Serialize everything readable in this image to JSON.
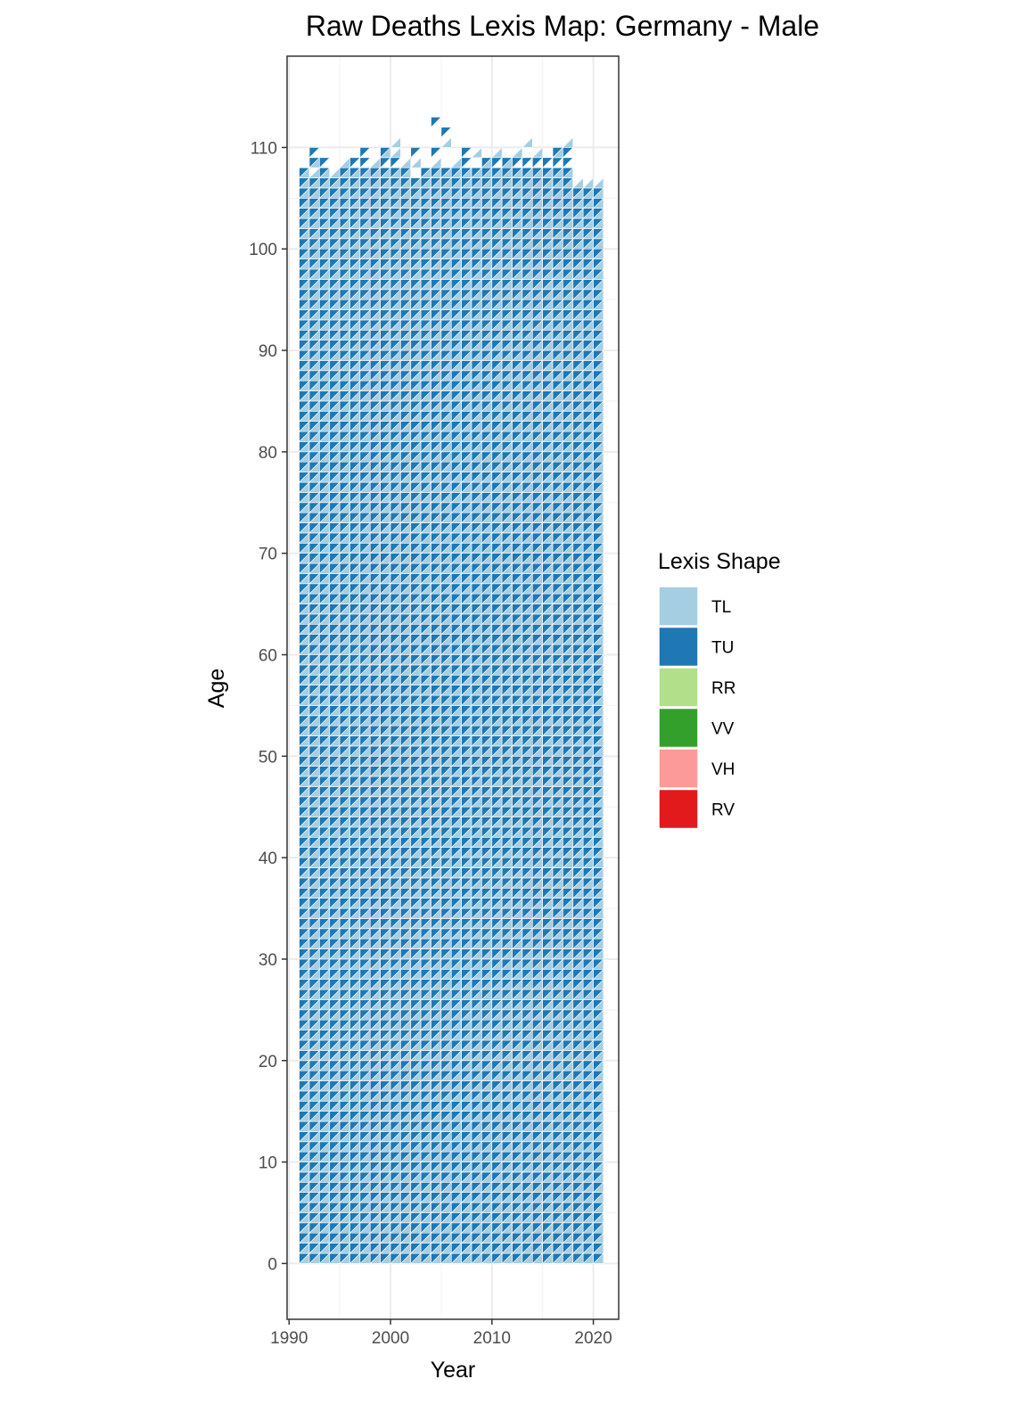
{
  "chart_data": {
    "type": "heatmap",
    "title": "Raw Deaths Lexis Map: Germany - Male",
    "xlabel": "Year",
    "ylabel": "Age",
    "xlim": [
      1989.8,
      2022.5
    ],
    "ylim": [
      -5.5,
      119
    ],
    "xticks": [
      1990,
      2000,
      2010,
      2020
    ],
    "yticks": [
      0,
      10,
      20,
      30,
      40,
      50,
      60,
      70,
      80,
      90,
      100,
      110
    ],
    "grid": true,
    "legend_position": "right",
    "legend": {
      "title": "Lexis Shape",
      "entries": [
        {
          "label": "TL",
          "color": "#a6cee3"
        },
        {
          "label": "TU",
          "color": "#1f78b4"
        },
        {
          "label": "RR",
          "color": "#b2df8a"
        },
        {
          "label": "VV",
          "color": "#33a02c"
        },
        {
          "label": "VH",
          "color": "#fb9a99"
        },
        {
          "label": "RV",
          "color": "#e31a1c"
        }
      ]
    },
    "series": [
      {
        "name": "TL",
        "color": "#a6cee3",
        "shape": "lower triangle of each year-age cell"
      },
      {
        "name": "TU",
        "color": "#1f78b4",
        "shape": "upper triangle of each year-age cell"
      }
    ],
    "years": [
      1991,
      1992,
      1993,
      1994,
      1995,
      1996,
      1997,
      1998,
      1999,
      2000,
      2001,
      2002,
      2003,
      2004,
      2005,
      2006,
      2007,
      2008,
      2009,
      2010,
      2011,
      2012,
      2013,
      2014,
      2015,
      2016,
      2017,
      2018,
      2019,
      2020
    ],
    "max_age_full_coverage": [
      106,
      106,
      106,
      106,
      107,
      107,
      107,
      107,
      107,
      107,
      107,
      106,
      107,
      107,
      107,
      107,
      107,
      107,
      107,
      107,
      107,
      107,
      107,
      107,
      107,
      107,
      107,
      105,
      105,
      105
    ],
    "upper_cells": [
      {
        "year": 1991,
        "age": 107,
        "shape": "TU"
      },
      {
        "year": 1991,
        "age": 107,
        "shape": "TL"
      },
      {
        "year": 1991,
        "age": 106,
        "shape": "TU"
      },
      {
        "year": 1992,
        "age": 109,
        "shape": "TU"
      },
      {
        "year": 1992,
        "age": 108,
        "shape": "TU"
      },
      {
        "year": 1992,
        "age": 108,
        "shape": "TL"
      },
      {
        "year": 1992,
        "age": 107,
        "shape": "TL"
      },
      {
        "year": 1993,
        "age": 108,
        "shape": "TU"
      },
      {
        "year": 1993,
        "age": 107,
        "shape": "TU"
      },
      {
        "year": 1993,
        "age": 107,
        "shape": "TL"
      },
      {
        "year": 1994,
        "age": 106,
        "shape": "TL"
      },
      {
        "year": 1994,
        "age": 107,
        "shape": "TL"
      },
      {
        "year": 1995,
        "age": 107,
        "shape": "TU"
      },
      {
        "year": 1995,
        "age": 108,
        "shape": "TL"
      },
      {
        "year": 1996,
        "age": 108,
        "shape": "TU"
      },
      {
        "year": 1996,
        "age": 107,
        "shape": "TL"
      },
      {
        "year": 1997,
        "age": 109,
        "shape": "TU"
      },
      {
        "year": 1997,
        "age": 108,
        "shape": "TU"
      },
      {
        "year": 1998,
        "age": 107,
        "shape": "TL"
      },
      {
        "year": 1998,
        "age": 108,
        "shape": "TL"
      },
      {
        "year": 1999,
        "age": 109,
        "shape": "TU"
      },
      {
        "year": 1999,
        "age": 108,
        "shape": "TU"
      },
      {
        "year": 1999,
        "age": 109,
        "shape": "TL"
      },
      {
        "year": 2000,
        "age": 110,
        "shape": "TL"
      },
      {
        "year": 2000,
        "age": 109,
        "shape": "TL"
      },
      {
        "year": 2000,
        "age": 108,
        "shape": "TU"
      },
      {
        "year": 2001,
        "age": 108,
        "shape": "TL"
      },
      {
        "year": 2001,
        "age": 107,
        "shape": "TU"
      },
      {
        "year": 2002,
        "age": 109,
        "shape": "TU"
      },
      {
        "year": 2002,
        "age": 108,
        "shape": "TL"
      },
      {
        "year": 2003,
        "age": 107,
        "shape": "TU"
      },
      {
        "year": 2003,
        "age": 107,
        "shape": "TL"
      },
      {
        "year": 2004,
        "age": 112,
        "shape": "TU"
      },
      {
        "year": 2004,
        "age": 109,
        "shape": "TU"
      },
      {
        "year": 2004,
        "age": 108,
        "shape": "TL"
      },
      {
        "year": 2005,
        "age": 111,
        "shape": "TU"
      },
      {
        "year": 2005,
        "age": 110,
        "shape": "TL"
      },
      {
        "year": 2005,
        "age": 107,
        "shape": "TU"
      },
      {
        "year": 2006,
        "age": 108,
        "shape": "TL"
      },
      {
        "year": 2006,
        "age": 107,
        "shape": "TU"
      },
      {
        "year": 2007,
        "age": 109,
        "shape": "TU"
      },
      {
        "year": 2007,
        "age": 108,
        "shape": "TU"
      },
      {
        "year": 2008,
        "age": 109,
        "shape": "TL"
      },
      {
        "year": 2008,
        "age": 107,
        "shape": "TU"
      },
      {
        "year": 2009,
        "age": 108,
        "shape": "TU"
      },
      {
        "year": 2009,
        "age": 108,
        "shape": "TL"
      },
      {
        "year": 2010,
        "age": 109,
        "shape": "TL"
      },
      {
        "year": 2010,
        "age": 108,
        "shape": "TU"
      },
      {
        "year": 2011,
        "age": 108,
        "shape": "TU"
      },
      {
        "year": 2011,
        "age": 108,
        "shape": "TL"
      },
      {
        "year": 2012,
        "age": 109,
        "shape": "TL"
      },
      {
        "year": 2012,
        "age": 108,
        "shape": "TU"
      },
      {
        "year": 2013,
        "age": 110,
        "shape": "TL"
      },
      {
        "year": 2013,
        "age": 108,
        "shape": "TU"
      },
      {
        "year": 2014,
        "age": 109,
        "shape": "TL"
      },
      {
        "year": 2014,
        "age": 108,
        "shape": "TU"
      },
      {
        "year": 2015,
        "age": 108,
        "shape": "TU"
      },
      {
        "year": 2016,
        "age": 109,
        "shape": "TU"
      },
      {
        "year": 2016,
        "age": 108,
        "shape": "TU"
      },
      {
        "year": 2016,
        "age": 109,
        "shape": "TL"
      },
      {
        "year": 2017,
        "age": 110,
        "shape": "TL"
      },
      {
        "year": 2017,
        "age": 109,
        "shape": "TU"
      },
      {
        "year": 2017,
        "age": 108,
        "shape": "TU"
      },
      {
        "year": 2018,
        "age": 106,
        "shape": "TL"
      },
      {
        "year": 2019,
        "age": 106,
        "shape": "TL"
      },
      {
        "year": 2020,
        "age": 106,
        "shape": "TL"
      }
    ]
  }
}
